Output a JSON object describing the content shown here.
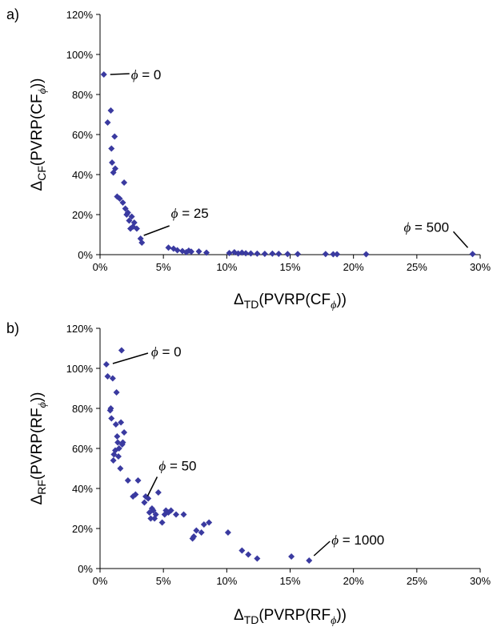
{
  "chart_data": [
    {
      "type": "scatter",
      "panel_label": "a)",
      "marker_color": "#3a3aa0",
      "xlim": [
        0,
        30
      ],
      "ylim": [
        0,
        120
      ],
      "x_ticks": [
        "0%",
        "5%",
        "10%",
        "15%",
        "20%",
        "25%",
        "30%"
      ],
      "y_ticks": [
        "0%",
        "20%",
        "40%",
        "60%",
        "80%",
        "100%",
        "120%"
      ],
      "xlabel": {
        "main": "Δ",
        "sub": "TD",
        "rest": "(PVRP(CF",
        "sub2": "ϕ",
        "end": "))"
      },
      "ylabel": {
        "main": "Δ",
        "sub": "CF",
        "rest": "(PVRP(CF",
        "sub2": "ϕ",
        "end": "))"
      },
      "annotations": [
        {
          "symbol": "ϕ",
          "text": " = 0",
          "x": 0.3,
          "y": 90
        },
        {
          "symbol": "ϕ",
          "text": " = 25",
          "x": 3.2,
          "y": 8
        },
        {
          "symbol": "ϕ",
          "text": " = 500",
          "x": 29.4,
          "y": 0.3
        }
      ],
      "points": [
        [
          0.3,
          90
        ],
        [
          0.6,
          66
        ],
        [
          0.85,
          72
        ],
        [
          0.9,
          53
        ],
        [
          0.95,
          46
        ],
        [
          1.05,
          41
        ],
        [
          1.15,
          59
        ],
        [
          1.2,
          43
        ],
        [
          1.35,
          29
        ],
        [
          1.55,
          28
        ],
        [
          1.8,
          26
        ],
        [
          1.9,
          36
        ],
        [
          2.0,
          23
        ],
        [
          2.1,
          20
        ],
        [
          2.2,
          21
        ],
        [
          2.3,
          17
        ],
        [
          2.4,
          13
        ],
        [
          2.5,
          19
        ],
        [
          2.6,
          14
        ],
        [
          2.7,
          16
        ],
        [
          2.9,
          13
        ],
        [
          3.2,
          8
        ],
        [
          3.3,
          6
        ],
        [
          5.4,
          3.5
        ],
        [
          5.8,
          3
        ],
        [
          6.1,
          2.2
        ],
        [
          6.5,
          1.8
        ],
        [
          6.8,
          1.2
        ],
        [
          7.0,
          2.0
        ],
        [
          7.2,
          1.5
        ],
        [
          7.8,
          1.6
        ],
        [
          8.4,
          1.0
        ],
        [
          10.2,
          0.8
        ],
        [
          10.6,
          1.2
        ],
        [
          10.9,
          0.6
        ],
        [
          11.2,
          1.0
        ],
        [
          11.5,
          0.7
        ],
        [
          11.9,
          0.6
        ],
        [
          12.4,
          0.5
        ],
        [
          13.0,
          0.4
        ],
        [
          13.6,
          0.5
        ],
        [
          14.1,
          0.4
        ],
        [
          14.8,
          0.3
        ],
        [
          15.6,
          0.3
        ],
        [
          17.8,
          0.3
        ],
        [
          18.4,
          0.2
        ],
        [
          18.7,
          0.2
        ],
        [
          21.0,
          0.2
        ],
        [
          29.4,
          0.3
        ]
      ]
    },
    {
      "type": "scatter",
      "panel_label": "b)",
      "marker_color": "#3a3aa0",
      "xlim": [
        0,
        30
      ],
      "ylim": [
        0,
        120
      ],
      "x_ticks": [
        "0%",
        "5%",
        "10%",
        "15%",
        "20%",
        "25%",
        "30%"
      ],
      "y_ticks": [
        "0%",
        "20%",
        "40%",
        "60%",
        "80%",
        "100%",
        "120%"
      ],
      "xlabel": {
        "main": "Δ",
        "sub": "TD",
        "rest": "(PVRP(RF",
        "sub2": "ϕ",
        "end": "))"
      },
      "ylabel": {
        "main": "Δ",
        "sub": "RF",
        "rest": "(PVRP(RF",
        "sub2": "ϕ",
        "end": "))"
      },
      "annotations": [
        {
          "symbol": "ϕ",
          "text": " = 0",
          "x": 0.5,
          "y": 102
        },
        {
          "symbol": "ϕ",
          "text": " = 50",
          "x": 3.5,
          "y": 33
        },
        {
          "symbol": "ϕ",
          "text": " = 1000",
          "x": 16.5,
          "y": 4
        }
      ],
      "points": [
        [
          0.5,
          102
        ],
        [
          0.6,
          96
        ],
        [
          0.8,
          79
        ],
        [
          0.85,
          80
        ],
        [
          0.9,
          75
        ],
        [
          1.0,
          95
        ],
        [
          1.05,
          54
        ],
        [
          1.1,
          57
        ],
        [
          1.2,
          59
        ],
        [
          1.25,
          72
        ],
        [
          1.3,
          88
        ],
        [
          1.35,
          66
        ],
        [
          1.4,
          63
        ],
        [
          1.45,
          56
        ],
        [
          1.5,
          60
        ],
        [
          1.6,
          50
        ],
        [
          1.65,
          73
        ],
        [
          1.7,
          109
        ],
        [
          1.75,
          62
        ],
        [
          1.8,
          63
        ],
        [
          1.9,
          68
        ],
        [
          2.2,
          44
        ],
        [
          2.6,
          36
        ],
        [
          2.8,
          37
        ],
        [
          3.0,
          44
        ],
        [
          3.5,
          33
        ],
        [
          3.6,
          36
        ],
        [
          3.8,
          35
        ],
        [
          3.9,
          28
        ],
        [
          4.0,
          25
        ],
        [
          4.1,
          30
        ],
        [
          4.2,
          29
        ],
        [
          4.3,
          25
        ],
        [
          4.4,
          27
        ],
        [
          4.6,
          38
        ],
        [
          4.9,
          23
        ],
        [
          5.1,
          27
        ],
        [
          5.2,
          29
        ],
        [
          5.4,
          28
        ],
        [
          5.6,
          29
        ],
        [
          6.0,
          27
        ],
        [
          6.6,
          27
        ],
        [
          7.3,
          15
        ],
        [
          7.4,
          16
        ],
        [
          7.6,
          19
        ],
        [
          8.0,
          18
        ],
        [
          8.2,
          22
        ],
        [
          8.6,
          23
        ],
        [
          10.1,
          18
        ],
        [
          11.2,
          9
        ],
        [
          11.7,
          7
        ],
        [
          12.4,
          5
        ],
        [
          15.1,
          6
        ],
        [
          16.5,
          4
        ]
      ]
    }
  ]
}
